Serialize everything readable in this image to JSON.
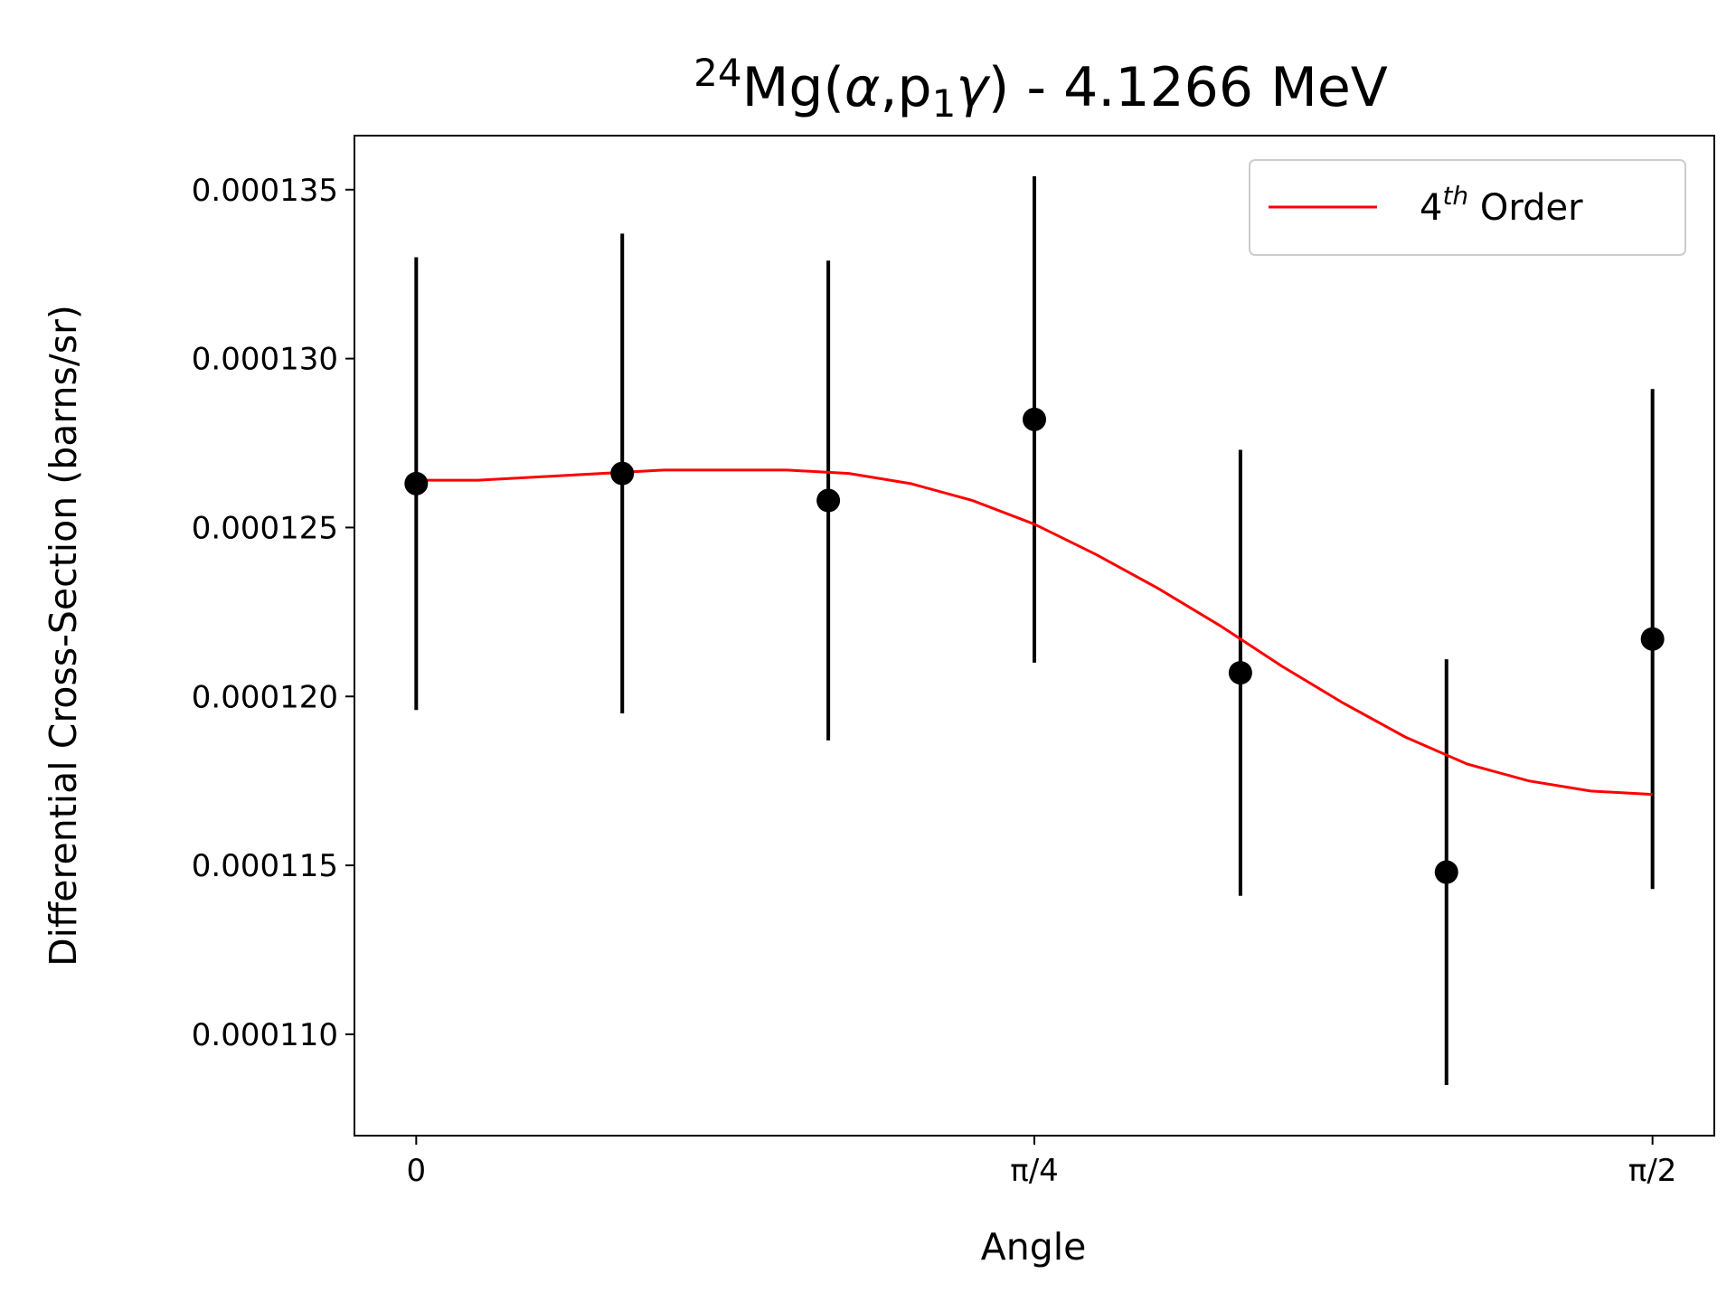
{
  "chart_data": {
    "type": "scatter",
    "title": {
      "prefix": "24",
      "main": "Mg(",
      "alpha": "α",
      "comma": ",p",
      "sub": "1",
      "gamma": "γ",
      "suffix": ") - 4.1266 MeV"
    },
    "xlabel": "Angle",
    "ylabel": "Differential Cross-Section (barns/sr)",
    "xlim": [
      -0.0785,
      1.6493
    ],
    "ylim": [
      0.000107,
      0.0001366
    ],
    "x_ticks": [
      {
        "value": 0,
        "label": "0"
      },
      {
        "value": 0.7854,
        "label": "π/4"
      },
      {
        "value": 1.5708,
        "label": "π/2"
      }
    ],
    "y_ticks": [
      {
        "value": 0.00011,
        "label": "0.000110"
      },
      {
        "value": 0.000115,
        "label": "0.000115"
      },
      {
        "value": 0.00012,
        "label": "0.000120"
      },
      {
        "value": 0.000125,
        "label": "0.000125"
      },
      {
        "value": 0.00013,
        "label": "0.000130"
      },
      {
        "value": 0.000135,
        "label": "0.000135"
      }
    ],
    "grid": false,
    "legend_position": "top-right",
    "legend": {
      "base": "4",
      "sup": "th",
      "rest": " Order"
    },
    "colors": {
      "fit": "#ff0000",
      "points": "#000000"
    },
    "series": [
      {
        "kind": "errorbar",
        "x": [
          0,
          0.2618,
          0.5236,
          0.7854,
          1.0472,
          1.309,
          1.5708
        ],
        "y": [
          0.0001263,
          0.0001266,
          0.0001258,
          0.0001282,
          0.0001207,
          0.0001148,
          0.0001217
        ],
        "yerr": [
          6.7e-06,
          7.1e-06,
          7.1e-06,
          7.2e-06,
          6.6e-06,
          6.3e-06,
          7.4e-06
        ]
      },
      {
        "kind": "line",
        "name": "4th Order",
        "x": [
          0,
          0.0785,
          0.1571,
          0.2356,
          0.3142,
          0.3927,
          0.4712,
          0.5498,
          0.6283,
          0.7069,
          0.7854,
          0.8639,
          0.9425,
          1.021,
          1.0996,
          1.1781,
          1.2566,
          1.3352,
          1.4137,
          1.4923,
          1.5708
        ],
        "y": [
          0.0001264,
          0.0001264,
          0.0001265,
          0.0001266,
          0.0001267,
          0.0001267,
          0.0001267,
          0.0001266,
          0.0001263,
          0.0001258,
          0.0001251,
          0.0001242,
          0.0001232,
          0.0001221,
          0.0001209,
          0.0001198,
          0.0001188,
          0.000118,
          0.0001175,
          0.0001172,
          0.0001171
        ]
      }
    ]
  }
}
